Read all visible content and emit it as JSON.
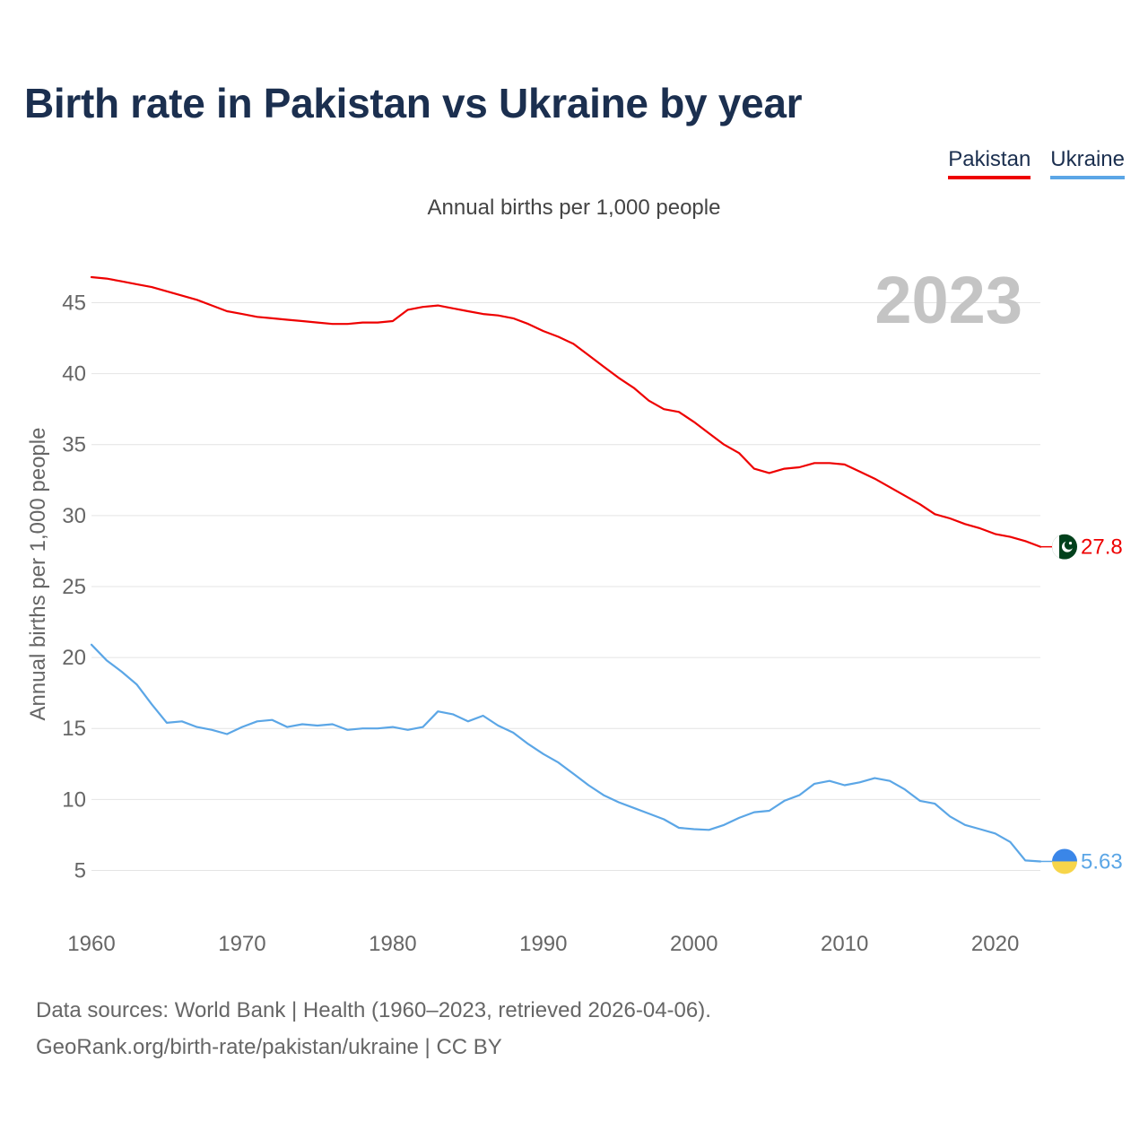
{
  "title": "Birth rate in Pakistan vs Ukraine by year",
  "subtitle": "Annual births per 1,000 people",
  "legend": [
    {
      "label": "Pakistan",
      "color": "#ee0000"
    },
    {
      "label": "Ukraine",
      "color": "#5ba6e6"
    }
  ],
  "footer": {
    "line1": "Data sources: World Bank | Health (1960–2023, retrieved 2026-04-06).",
    "line2": "GeoRank.org/birth-rate/pakistan/ukraine | CC BY"
  },
  "chart_data": {
    "type": "line",
    "title": "Birth rate in Pakistan vs Ukraine by year",
    "ylabel": "Annual births per 1,000 people",
    "xlabel": "",
    "year_label": "2023",
    "xlim": [
      1960,
      2023
    ],
    "ylim": [
      2.5,
      48
    ],
    "x_ticks": [
      1960,
      1970,
      1980,
      1990,
      2000,
      2010,
      2020
    ],
    "y_ticks": [
      5,
      10,
      15,
      20,
      25,
      30,
      35,
      40,
      45
    ],
    "grid": true,
    "x": [
      1960,
      1961,
      1962,
      1963,
      1964,
      1965,
      1966,
      1967,
      1968,
      1969,
      1970,
      1971,
      1972,
      1973,
      1974,
      1975,
      1976,
      1977,
      1978,
      1979,
      1980,
      1981,
      1982,
      1983,
      1984,
      1985,
      1986,
      1987,
      1988,
      1989,
      1990,
      1991,
      1992,
      1993,
      1994,
      1995,
      1996,
      1997,
      1998,
      1999,
      2000,
      2001,
      2002,
      2003,
      2004,
      2005,
      2006,
      2007,
      2008,
      2009,
      2010,
      2011,
      2012,
      2013,
      2014,
      2015,
      2016,
      2017,
      2018,
      2019,
      2020,
      2021,
      2022,
      2023
    ],
    "series": [
      {
        "name": "Pakistan",
        "color": "#ee0000",
        "end_label": "27.8",
        "flag": "pakistan-flag",
        "values": [
          46.8,
          46.7,
          46.5,
          46.3,
          46.1,
          45.8,
          45.5,
          45.2,
          44.8,
          44.4,
          44.2,
          44.0,
          43.9,
          43.8,
          43.7,
          43.6,
          43.5,
          43.5,
          43.6,
          43.6,
          43.7,
          44.5,
          44.7,
          44.8,
          44.6,
          44.4,
          44.2,
          44.1,
          43.9,
          43.5,
          43.0,
          42.6,
          42.1,
          41.3,
          40.5,
          39.7,
          39.0,
          38.1,
          37.5,
          37.3,
          36.6,
          35.8,
          35.0,
          34.4,
          33.3,
          33.0,
          33.3,
          33.4,
          33.7,
          33.7,
          33.6,
          33.1,
          32.6,
          32.0,
          31.4,
          30.8,
          30.1,
          29.8,
          29.4,
          29.1,
          28.7,
          28.5,
          28.2,
          27.8
        ]
      },
      {
        "name": "Ukraine",
        "color": "#5ba6e6",
        "end_label": "5.63",
        "flag": "ukraine-flag",
        "values": [
          20.9,
          19.8,
          19.0,
          18.1,
          16.7,
          15.4,
          15.5,
          15.1,
          14.9,
          14.6,
          15.1,
          15.5,
          15.6,
          15.1,
          15.3,
          15.2,
          15.3,
          14.9,
          15.0,
          15.0,
          15.1,
          14.9,
          15.1,
          16.2,
          16.0,
          15.5,
          15.9,
          15.2,
          14.7,
          13.9,
          13.2,
          12.6,
          11.8,
          11.0,
          10.3,
          9.8,
          9.4,
          9.0,
          8.6,
          8.0,
          7.9,
          7.85,
          8.2,
          8.7,
          9.1,
          9.2,
          9.9,
          10.3,
          11.1,
          11.3,
          11.0,
          11.2,
          11.5,
          11.3,
          10.7,
          9.9,
          9.7,
          8.8,
          8.2,
          7.9,
          7.6,
          7.0,
          5.7,
          5.63
        ]
      }
    ]
  }
}
